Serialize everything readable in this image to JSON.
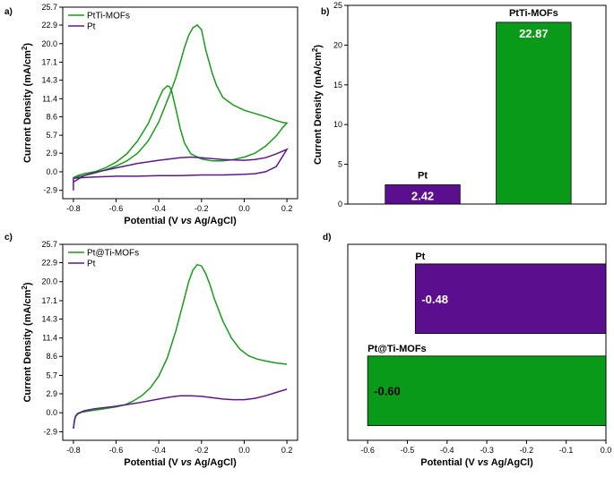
{
  "panels": {
    "a": "a)",
    "b": "b)",
    "c": "c)",
    "d": "d)"
  },
  "colors": {
    "green": "#1a9a1a",
    "purple": "#5b1a8a",
    "bar_green": "#0a9a1a",
    "bar_purple": "#5b0e8e"
  },
  "chart_data": [
    {
      "panel": "a",
      "type": "line",
      "xlabel_parts": [
        "Potential (V ",
        "vs",
        " Ag/AgCl)"
      ],
      "ylabel": "Current Density (mA/cm",
      "ylabel_sup": "2",
      "ylabel_close": ")",
      "xlim": [
        -0.85,
        0.25
      ],
      "ylim": [
        -4.2,
        25.7
      ],
      "xticks": [
        -0.8,
        -0.6,
        -0.4,
        -0.2,
        0.0,
        0.2
      ],
      "xtick_labels": [
        "-0.8",
        "-0.6",
        "-0.4",
        "-0.2",
        "0.0",
        "0.2"
      ],
      "yticks": [
        -2.9,
        0.0,
        2.9,
        5.7,
        8.6,
        11.4,
        14.3,
        17.1,
        20.0,
        22.9,
        25.7
      ],
      "ytick_labels": [
        "-2.9",
        "0.0",
        "2.9",
        "5.7",
        "8.6",
        "11.4",
        "14.3",
        "17.1",
        "20.0",
        "22.9",
        "25.7"
      ],
      "series": [
        {
          "name": "PtTi-MOFs",
          "color": "green",
          "x": [
            -0.8,
            -0.78,
            -0.75,
            -0.7,
            -0.65,
            -0.6,
            -0.55,
            -0.5,
            -0.45,
            -0.42,
            -0.4,
            -0.38,
            -0.36,
            -0.35,
            -0.34,
            -0.32,
            -0.3,
            -0.28,
            -0.25,
            -0.2,
            -0.15,
            -0.1,
            -0.05,
            0.0,
            0.05,
            0.1,
            0.15,
            0.18,
            0.2,
            0.2,
            0.18,
            0.15,
            0.1,
            0.05,
            0.0,
            -0.05,
            -0.1,
            -0.13,
            -0.15,
            -0.18,
            -0.2,
            -0.22,
            -0.24,
            -0.26,
            -0.28,
            -0.3,
            -0.32,
            -0.35,
            -0.4,
            -0.45,
            -0.5,
            -0.55,
            -0.6,
            -0.65,
            -0.7,
            -0.75,
            -0.8
          ],
          "y": [
            -0.9,
            -0.6,
            -0.3,
            0.0,
            0.6,
            1.5,
            2.8,
            4.8,
            7.5,
            9.8,
            11.4,
            12.8,
            13.4,
            13.3,
            12.6,
            9.8,
            6.8,
            4.5,
            2.8,
            2.0,
            1.7,
            1.7,
            1.9,
            2.3,
            2.9,
            4.0,
            5.6,
            6.9,
            7.6,
            7.6,
            7.7,
            8.0,
            8.6,
            9.1,
            9.6,
            10.4,
            11.6,
            13.5,
            15.4,
            19.0,
            22.2,
            22.9,
            22.5,
            21.3,
            19.4,
            17.0,
            14.7,
            12.0,
            7.8,
            4.8,
            2.9,
            1.7,
            0.9,
            0.3,
            -0.2,
            -0.6,
            -0.9
          ]
        },
        {
          "name": "Pt",
          "color": "purple",
          "x": [
            -0.8,
            -0.75,
            -0.7,
            -0.6,
            -0.5,
            -0.4,
            -0.3,
            -0.25,
            -0.2,
            -0.1,
            0.0,
            0.05,
            0.1,
            0.15,
            0.2,
            0.2,
            0.15,
            0.1,
            0.05,
            0.0,
            -0.1,
            -0.2,
            -0.3,
            -0.4,
            -0.5,
            -0.6,
            -0.7,
            -0.75,
            -0.8,
            -0.8
          ],
          "y": [
            -1.6,
            -0.6,
            -0.1,
            0.6,
            1.3,
            1.8,
            2.2,
            2.3,
            2.2,
            1.9,
            1.8,
            1.9,
            2.2,
            2.8,
            3.5,
            3.5,
            0.8,
            0.0,
            -0.3,
            -0.4,
            -0.5,
            -0.5,
            -0.6,
            -0.6,
            -0.7,
            -0.7,
            -0.8,
            -0.9,
            -1.0,
            -2.9
          ]
        }
      ]
    },
    {
      "panel": "b",
      "type": "bar",
      "ylabel": "Current Density (mA/cm",
      "ylabel_sup": "2",
      "ylabel_close": ")",
      "ylim": [
        0,
        25
      ],
      "yticks": [
        0,
        5,
        10,
        15,
        20,
        25
      ],
      "ytick_labels": [
        "0",
        "5",
        "10",
        "15",
        "20",
        "25"
      ],
      "categories": [
        "Pt",
        "PtTi-MOFs"
      ],
      "values": [
        2.42,
        22.87
      ],
      "value_labels": [
        "2.42",
        "22.87"
      ],
      "colors": [
        "bar_purple",
        "bar_green"
      ]
    },
    {
      "panel": "c",
      "type": "line",
      "xlabel_parts": [
        "Potential (V ",
        "vs",
        " Ag/AgCl)"
      ],
      "ylabel": "Current Density (mA/cm",
      "ylabel_sup": "2",
      "ylabel_close": ")",
      "xlim": [
        -0.85,
        0.25
      ],
      "ylim": [
        -4.2,
        25.7
      ],
      "xticks": [
        -0.8,
        -0.6,
        -0.4,
        -0.2,
        0.0,
        0.2
      ],
      "xtick_labels": [
        "-0.8",
        "-0.6",
        "-0.4",
        "-0.2",
        "0.0",
        "0.2"
      ],
      "yticks": [
        -2.9,
        0.0,
        2.9,
        5.7,
        8.6,
        11.4,
        14.3,
        17.1,
        20.0,
        22.9,
        25.7
      ],
      "ytick_labels": [
        "-2.9",
        "0.0",
        "2.9",
        "5.7",
        "8.6",
        "11.4",
        "14.3",
        "17.1",
        "20.0",
        "22.9",
        "25.7"
      ],
      "series": [
        {
          "name": "Pt@Ti-MOFs",
          "color": "green",
          "x": [
            -0.8,
            -0.795,
            -0.79,
            -0.78,
            -0.76,
            -0.72,
            -0.68,
            -0.64,
            -0.6,
            -0.56,
            -0.52,
            -0.48,
            -0.44,
            -0.4,
            -0.36,
            -0.32,
            -0.28,
            -0.26,
            -0.24,
            -0.22,
            -0.2,
            -0.18,
            -0.16,
            -0.14,
            -0.1,
            -0.06,
            -0.02,
            0.02,
            0.06,
            0.1,
            0.15,
            0.2
          ],
          "y": [
            -2.4,
            -1.2,
            -0.6,
            -0.2,
            0.1,
            0.3,
            0.5,
            0.7,
            0.9,
            1.2,
            1.8,
            2.6,
            3.8,
            5.6,
            8.4,
            12.5,
            17.5,
            20.0,
            21.8,
            22.6,
            22.4,
            21.2,
            19.5,
            17.4,
            14.0,
            11.4,
            9.7,
            8.7,
            8.2,
            7.9,
            7.6,
            7.4
          ]
        },
        {
          "name": "Pt",
          "color": "purple",
          "x": [
            -0.8,
            -0.795,
            -0.79,
            -0.78,
            -0.75,
            -0.7,
            -0.6,
            -0.5,
            -0.4,
            -0.35,
            -0.3,
            -0.25,
            -0.2,
            -0.15,
            -0.1,
            -0.05,
            0.0,
            0.05,
            0.1,
            0.15,
            0.2
          ],
          "y": [
            -2.4,
            -1.1,
            -0.5,
            -0.1,
            0.3,
            0.6,
            1.0,
            1.5,
            2.1,
            2.4,
            2.6,
            2.6,
            2.5,
            2.3,
            2.1,
            2.0,
            2.0,
            2.2,
            2.6,
            3.1,
            3.6
          ]
        }
      ]
    },
    {
      "panel": "d",
      "type": "bar",
      "orientation": "horizontal",
      "xlabel_parts": [
        "Potential (V ",
        "vs",
        " Ag/AgCl)"
      ],
      "xlim": [
        -0.65,
        0.0
      ],
      "xticks": [
        -0.6,
        -0.5,
        -0.4,
        -0.3,
        -0.2,
        -0.1,
        0.0
      ],
      "xtick_labels": [
        "-0.6",
        "-0.5",
        "-0.4",
        "-0.3",
        "-0.2",
        "-0.1",
        "0.0"
      ],
      "categories": [
        "Pt",
        "Pt@Ti-MOFs"
      ],
      "values": [
        -0.48,
        -0.6
      ],
      "value_labels": [
        "-0.48",
        "-0.60"
      ],
      "colors": [
        "bar_purple",
        "bar_green"
      ]
    }
  ]
}
